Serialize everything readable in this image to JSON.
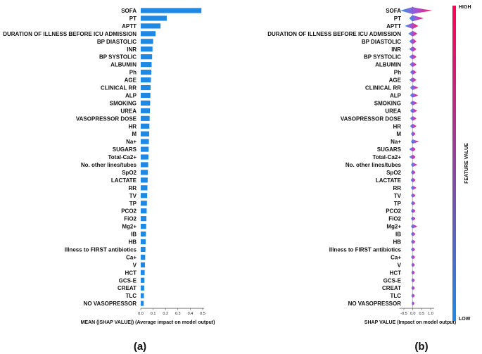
{
  "chart_data": [
    {
      "type": "bar",
      "orientation": "horizontal",
      "panel_label": "(a)",
      "xlabel": "MEAN (|SHAP VALUE|) (Average impact on model output)",
      "xlim": [
        0,
        0.5
      ],
      "xticks": [
        "0.0",
        "0.1",
        "0.2",
        "0.3",
        "0.4",
        "0.5"
      ],
      "bar_color": "#1e88e5",
      "categories": [
        "SOFA",
        "PT",
        "APTT",
        "DURATION OF ILLNESS BEFORE ICU ADMISSION",
        "BP DIASTOLIC",
        "INR",
        "BP SYSTOLIC",
        "ALBUMIN",
        "Ph",
        "AGE",
        "CLINICAL RR",
        "ALP",
        "SMOKING",
        "UREA",
        "VASOPRESSOR DOSE",
        "HR",
        "M",
        "Na+",
        "SUGARS",
        "Total-Ca2+",
        "No. other lines/tubes",
        "SpO2",
        "LACTATE",
        "RR",
        "TV",
        "TP",
        "PCO2",
        "FiO2",
        "Mg2+",
        "IB",
        "HB",
        "Illness to FIRST antibiotics",
        "Ca+",
        "V",
        "HCT",
        "GCS-E",
        "CREAT",
        "TLC",
        "NO VASOPRESSOR"
      ],
      "values": [
        0.49,
        0.21,
        0.16,
        0.12,
        0.1,
        0.095,
        0.092,
        0.088,
        0.085,
        0.082,
        0.08,
        0.078,
        0.076,
        0.074,
        0.072,
        0.07,
        0.068,
        0.066,
        0.064,
        0.062,
        0.06,
        0.058,
        0.056,
        0.054,
        0.052,
        0.05,
        0.048,
        0.046,
        0.044,
        0.042,
        0.04,
        0.038,
        0.036,
        0.034,
        0.032,
        0.03,
        0.028,
        0.026,
        0.024
      ]
    },
    {
      "type": "scatter",
      "subtype": "beeswarm",
      "panel_label": "(b)",
      "xlabel": "SHAP VALUE (Impact on model output)",
      "xlim": [
        -0.75,
        1.2
      ],
      "xticks": [
        "-0.5",
        "0.0",
        "0.5",
        "1.0"
      ],
      "xtick_values": [
        -0.5,
        0.0,
        0.5,
        1.0
      ],
      "colorbar": {
        "label": "FEATURE VALUE",
        "high": "HIGH",
        "low": "LOW",
        "low_color": "#1e88e5",
        "high_color": "#ff0052"
      },
      "spreads": [
        [
          -0.7,
          1.1,
          1.0
        ],
        [
          -0.2,
          0.6,
          0.8
        ],
        [
          -0.45,
          0.3,
          0.7
        ],
        [
          -0.25,
          0.25,
          0.6
        ],
        [
          -0.2,
          0.2,
          0.6
        ],
        [
          -0.2,
          0.2,
          0.5
        ],
        [
          -0.2,
          0.2,
          0.5
        ],
        [
          -0.18,
          0.2,
          0.5
        ],
        [
          -0.15,
          0.2,
          0.45
        ],
        [
          -0.2,
          0.2,
          0.45
        ],
        [
          -0.15,
          0.3,
          0.45
        ],
        [
          -0.15,
          0.3,
          0.4
        ],
        [
          -0.15,
          0.25,
          0.4
        ],
        [
          -0.15,
          0.25,
          0.4
        ],
        [
          -0.15,
          0.2,
          0.4
        ],
        [
          -0.15,
          0.2,
          0.4
        ],
        [
          -0.1,
          0.15,
          0.35
        ],
        [
          -0.1,
          0.35,
          0.35
        ],
        [
          -0.2,
          0.15,
          0.35
        ],
        [
          -0.2,
          0.15,
          0.35
        ],
        [
          -0.1,
          0.25,
          0.35
        ],
        [
          -0.1,
          0.15,
          0.35
        ],
        [
          -0.12,
          0.15,
          0.35
        ],
        [
          -0.1,
          0.2,
          0.3
        ],
        [
          -0.1,
          0.15,
          0.3
        ],
        [
          -0.1,
          0.15,
          0.3
        ],
        [
          -0.1,
          0.15,
          0.3
        ],
        [
          -0.1,
          0.15,
          0.3
        ],
        [
          -0.1,
          0.25,
          0.3
        ],
        [
          -0.1,
          0.15,
          0.3
        ],
        [
          -0.1,
          0.15,
          0.3
        ],
        [
          -0.1,
          0.12,
          0.25
        ],
        [
          -0.1,
          0.12,
          0.25
        ],
        [
          -0.08,
          0.1,
          0.25
        ],
        [
          -0.08,
          0.1,
          0.25
        ],
        [
          -0.08,
          0.1,
          0.25
        ],
        [
          -0.08,
          0.1,
          0.25
        ],
        [
          -0.08,
          0.1,
          0.25
        ],
        [
          -0.06,
          0.08,
          0.2
        ]
      ]
    }
  ]
}
